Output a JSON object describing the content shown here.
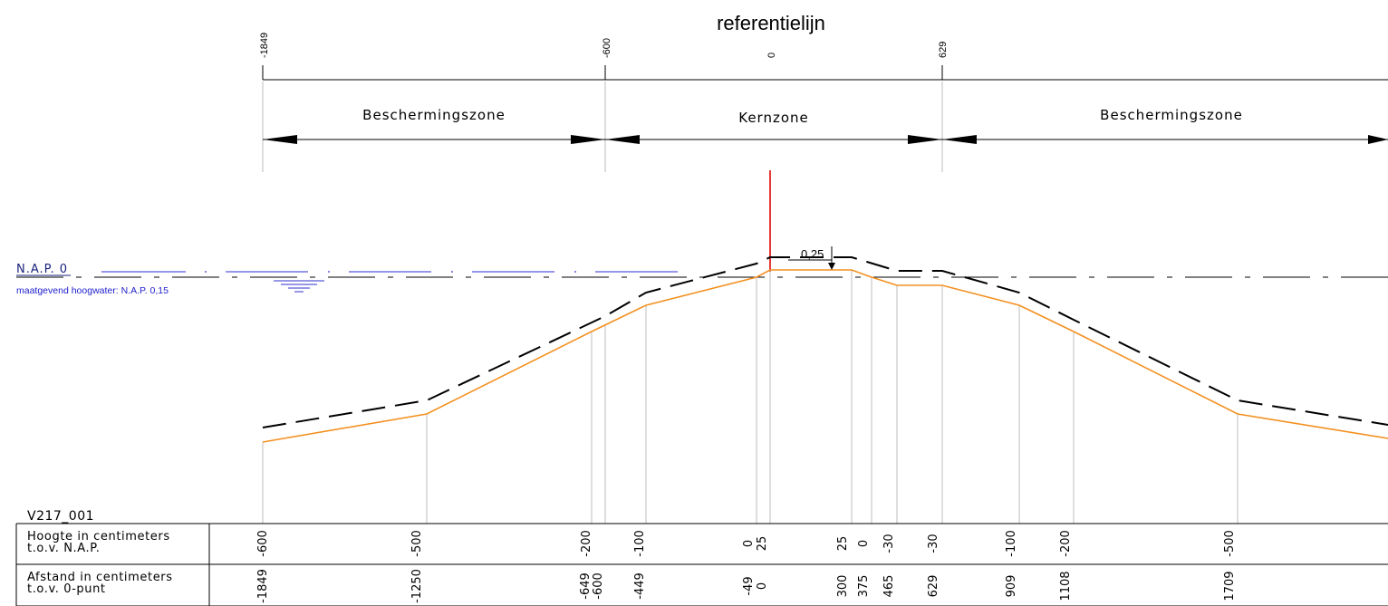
{
  "title": "referentielijn",
  "top_ticks": [
    "-1849",
    "-600",
    "0",
    "629"
  ],
  "zones": [
    "Beschermingszone",
    "Kernzone",
    "Beschermingszone"
  ],
  "water": {
    "nap_label": "N.A.P. 0",
    "hoogwater_label": "maatgevend hoogwater: N.A.P. 0,15"
  },
  "dimension_label": "0,25",
  "profile_id": "V217_001",
  "rows": {
    "height_label": [
      "Hoogte in centimeters",
      "t.o.v. N.A.P."
    ],
    "distance_label": [
      "Afstand in centimeters",
      "t.o.v. 0-punt"
    ]
  },
  "height_values": [
    "-600",
    "-500",
    "-200",
    "-100",
    "0",
    "25",
    "25",
    "0",
    "-30",
    "-30",
    "-100",
    "-200",
    "-500"
  ],
  "distance_values": [
    "-1849",
    "-1250",
    "-649",
    "-600",
    "-449",
    "-49",
    "0",
    "300",
    "375",
    "465",
    "629",
    "909",
    "1108",
    "1709"
  ],
  "colors": {
    "reference_line": "#e53935",
    "profile_line": "#f39020",
    "design_line": "#000000",
    "water": "#2f2fd0",
    "guides": "#bdbdbd"
  }
}
